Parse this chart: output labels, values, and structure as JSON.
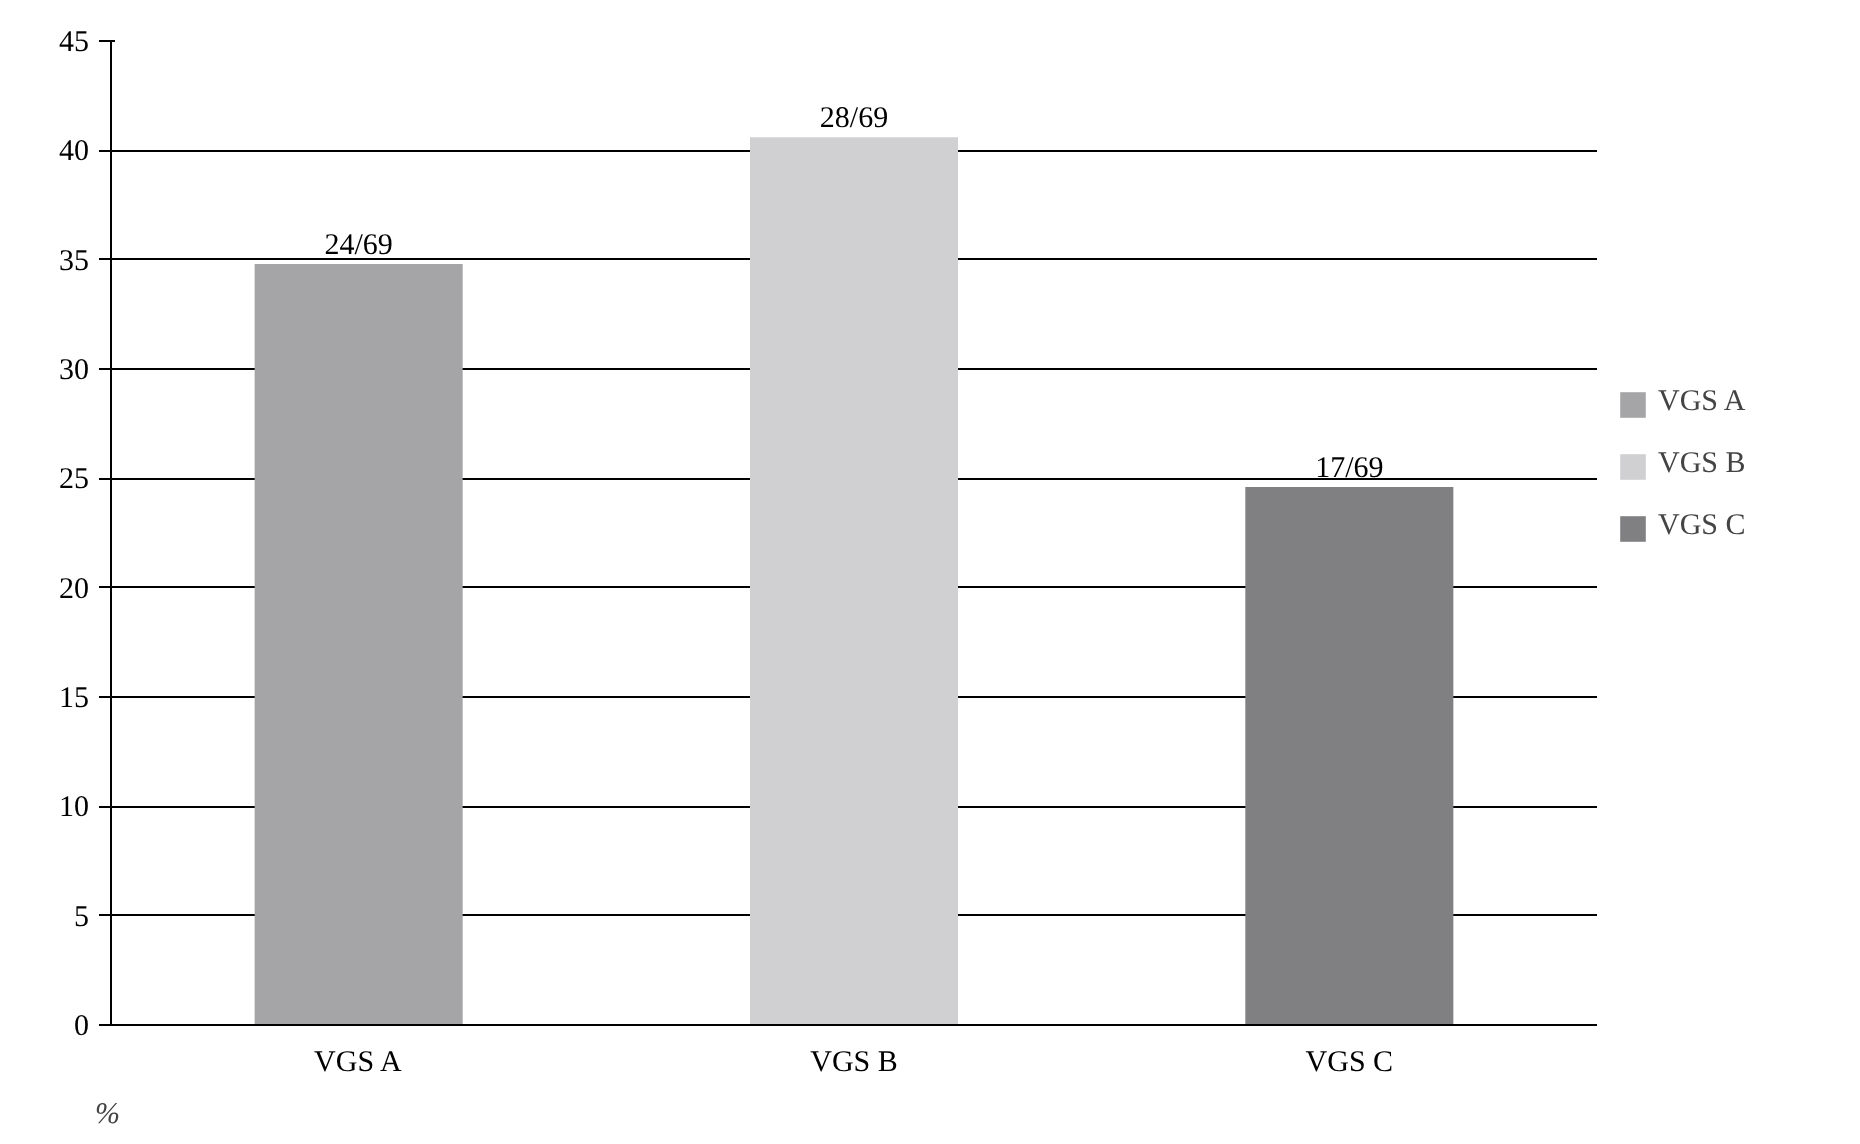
{
  "chart_data": {
    "type": "bar",
    "ylabel": "%",
    "categories": [
      "VGS A",
      "VGS B",
      "VGS C"
    ],
    "series": [
      {
        "name": "VGS A",
        "color": "#a5a5a7",
        "values": [
          34.8,
          null,
          null
        ],
        "value_labels": [
          "24/69",
          null,
          null
        ]
      },
      {
        "name": "VGS B",
        "color": "#d0d0d2",
        "values": [
          null,
          40.6,
          null
        ],
        "value_labels": [
          null,
          "28/69",
          null
        ]
      },
      {
        "name": "VGS C",
        "color": "#808083",
        "values": [
          null,
          null,
          24.6
        ],
        "value_labels": [
          null,
          null,
          "17/69"
        ]
      }
    ],
    "ylim": [
      0,
      45
    ],
    "yticks": [
      0,
      5,
      10,
      15,
      20,
      25,
      30,
      35,
      40,
      45
    ],
    "grid": "y",
    "legend": "right"
  }
}
